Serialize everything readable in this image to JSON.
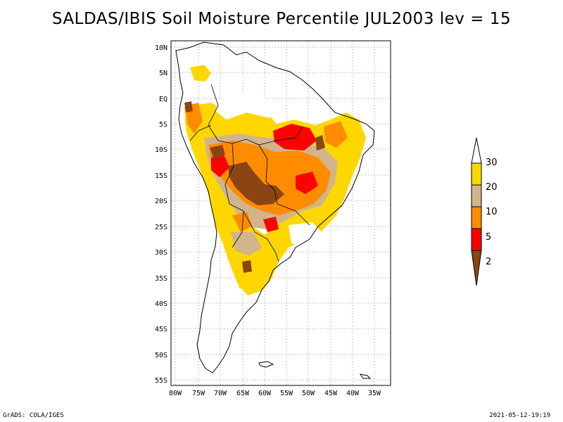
{
  "title": "SALDAS/IBIS Soil Moisture Percentile JUL2003 lev = 15",
  "footer": {
    "left": "GrADS: COLA/IGES",
    "right": "2021-05-12-19:19"
  },
  "map": {
    "region": "South America",
    "lon_range": [
      -82,
      -31
    ],
    "lat_range": [
      -56,
      12
    ],
    "grid": true,
    "lon_ticks": [
      "80W",
      "75W",
      "70W",
      "65W",
      "60W",
      "55W",
      "50W",
      "45W",
      "40W",
      "35W"
    ],
    "lat_ticks": [
      "10N",
      "5N",
      "EQ",
      "5S",
      "10S",
      "15S",
      "20S",
      "25S",
      "30S",
      "35S",
      "40S",
      "45S",
      "50S",
      "55S"
    ]
  },
  "colorbar": {
    "labels": [
      "2",
      "5",
      "10",
      "20",
      "30"
    ],
    "colors": {
      "below_2": "#8B4513",
      "2_5": "#FF0000",
      "5_10": "#FF8C00",
      "10_20": "#D2B48C",
      "20_30": "#FFD700",
      "above_30": "#FFFFFF"
    }
  }
}
